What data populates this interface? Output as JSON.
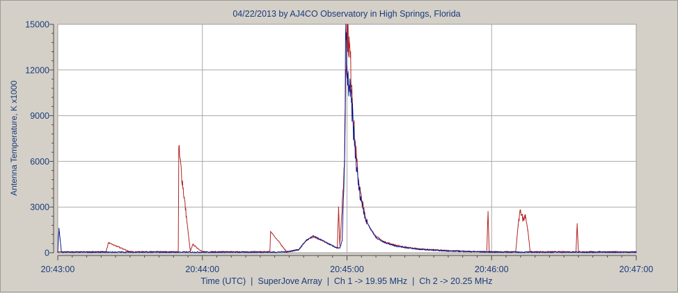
{
  "chart_data": {
    "type": "line",
    "title": "04/22/2013  by  AJ4CO Observatory  in  High Springs, Florida",
    "xlabel": "Time (UTC)  |  SuperJove Array  |  Ch 1 -> 19.95 MHz  |  Ch 2 -> 20.25 MHz",
    "ylabel": "Antenna Temperature, K x1000",
    "xlim": [
      0,
      240
    ],
    "ylim": [
      0,
      15000
    ],
    "x_unit": "seconds after 20:43:00 UTC",
    "x_ticks": [
      0,
      60,
      120,
      180,
      240
    ],
    "x_tick_labels": [
      "20:43:00",
      "20:44:00",
      "20:45:00",
      "20:46:00",
      "20:47:00"
    ],
    "y_ticks": [
      0,
      3000,
      6000,
      9000,
      12000,
      15000
    ],
    "y_tick_labels": [
      "0",
      "3000",
      "6000",
      "9000",
      "12000",
      "15000"
    ],
    "grid": true,
    "series": [
      {
        "name": "Ch 2 -> 20.25 MHz",
        "color": "#b22222",
        "x": [
          0,
          20,
          21,
          30,
          50,
          50.2,
          55,
          56,
          60,
          80,
          88,
          88.3,
          95,
          100,
          103,
          106,
          108,
          111,
          114,
          116,
          116.5,
          117,
          118,
          119,
          119.5,
          120,
          121,
          122,
          123,
          124,
          125,
          126,
          127,
          128,
          130,
          132,
          135,
          140,
          145,
          150,
          160,
          170,
          178,
          178.5,
          179,
          190,
          191,
          192,
          193,
          194,
          195,
          196,
          200,
          210,
          215,
          215.5,
          216,
          220,
          225,
          240
        ],
        "y": [
          50,
          60,
          650,
          60,
          60,
          6800,
          60,
          550,
          60,
          60,
          60,
          1400,
          60,
          200,
          800,
          1050,
          900,
          700,
          450,
          350,
          3000,
          500,
          3000,
          6000,
          12000,
          14800,
          13500,
          11000,
          8000,
          6000,
          4500,
          3500,
          2800,
          2100,
          1500,
          1100,
          750,
          500,
          350,
          250,
          150,
          90,
          60,
          2700,
          60,
          60,
          1800,
          2800,
          2200,
          2500,
          1500,
          60,
          60,
          60,
          60,
          1900,
          60,
          60,
          60,
          50
        ]
      },
      {
        "name": "Ch 1 -> 19.95 MHz",
        "color": "#0a1a8c",
        "x": [
          0,
          0.5,
          1.5,
          20,
          50,
          90,
          95,
          100,
          103,
          106,
          108,
          111,
          114,
          116,
          117,
          118,
          119,
          119.5,
          120,
          121,
          122,
          123,
          124,
          125,
          126,
          127,
          128,
          130,
          132,
          135,
          140,
          145,
          150,
          160,
          170,
          180,
          190,
          192,
          200,
          215,
          225,
          240
        ],
        "y": [
          40,
          1600,
          40,
          40,
          40,
          40,
          60,
          200,
          800,
          1100,
          950,
          700,
          450,
          300,
          300,
          800,
          6000,
          15000,
          11500,
          10800,
          9500,
          7500,
          5500,
          4200,
          3400,
          2700,
          2100,
          1500,
          1000,
          700,
          450,
          320,
          220,
          130,
          80,
          50,
          40,
          40,
          40,
          40,
          40,
          40
        ]
      }
    ]
  }
}
